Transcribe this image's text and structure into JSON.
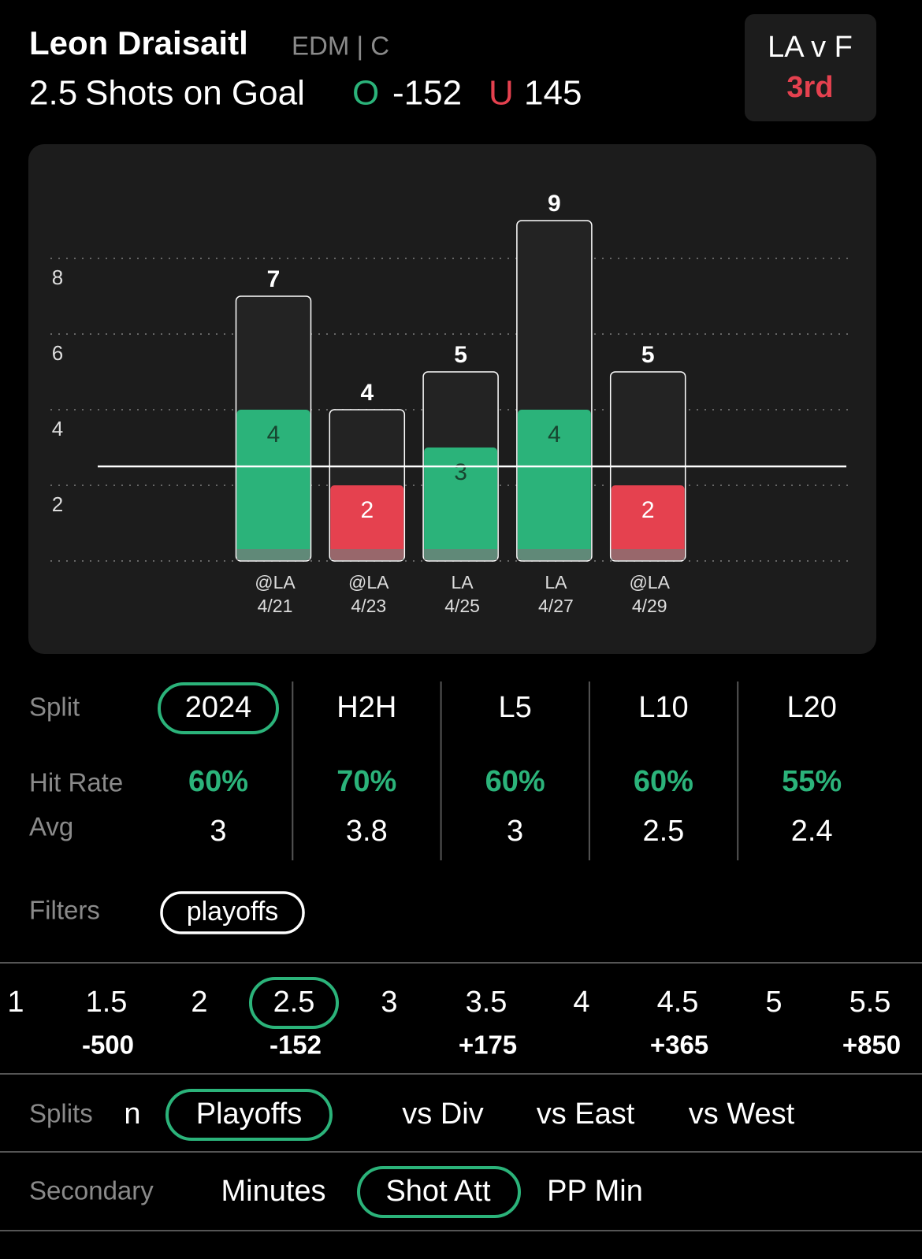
{
  "header": {
    "player": "Leon Draisaitl",
    "team_pos": "EDM | C",
    "line": 2.5,
    "market": "Shots on Goal",
    "over_label": "O",
    "over_odds": "-152",
    "under_label": "U",
    "under_odds": 145,
    "game": "LA v F",
    "period": "3rd"
  },
  "chart_data": {
    "type": "bar",
    "opponents": [
      "@LA",
      "@LA",
      "LA",
      "LA",
      "@LA"
    ],
    "dates": [
      "4/21",
      "4/23",
      "4/25",
      "4/27",
      "4/29"
    ],
    "series": [
      {
        "color": "#ffffff",
        "values": [
          7,
          4,
          5,
          9,
          5
        ]
      },
      {
        "values": [
          4,
          2,
          3,
          4,
          2
        ]
      }
    ],
    "over_color": "#2bb37a",
    "under_color": "#e5414f",
    "ylim": [
      0,
      9
    ],
    "yticks": [
      2,
      4,
      6,
      8
    ],
    "grid": true
  },
  "splits_table": {
    "row_labels": [
      "Split",
      "Hit Rate",
      "Avg"
    ],
    "columns": [
      {
        "name": "2024",
        "hit_rate": "60%",
        "avg": 3
      },
      {
        "name": "H2H",
        "hit_rate": "70%",
        "avg": 3.8
      },
      {
        "name": "L5",
        "hit_rate": "60%",
        "avg": 3
      },
      {
        "name": "L10",
        "hit_rate": "60%",
        "avg": 2.5
      },
      {
        "name": "L20",
        "hit_rate": "55%",
        "avg": 2.4
      }
    ]
  },
  "filters": {
    "label": "Filters",
    "items": [
      "playoffs"
    ]
  },
  "lines": [
    {
      "value": 1
    },
    {
      "value": 1.5,
      "odds": "-500"
    },
    {
      "value": 2
    },
    {
      "value": 2.5,
      "odds": "-152"
    },
    {
      "value": 3
    },
    {
      "value": 3.5,
      "odds": "+175"
    },
    {
      "value": 4
    },
    {
      "value": 4.5,
      "odds": "+365"
    },
    {
      "value": 5
    },
    {
      "value": 5.5,
      "odds": "+850"
    }
  ],
  "splits": {
    "label": "Splits",
    "items": [
      "n",
      "Playoffs",
      "vs Div",
      "vs East",
      "vs West"
    ]
  },
  "secondary": {
    "label": "Secondary",
    "items": [
      "Minutes",
      "Shot Att",
      "PP Min"
    ]
  }
}
